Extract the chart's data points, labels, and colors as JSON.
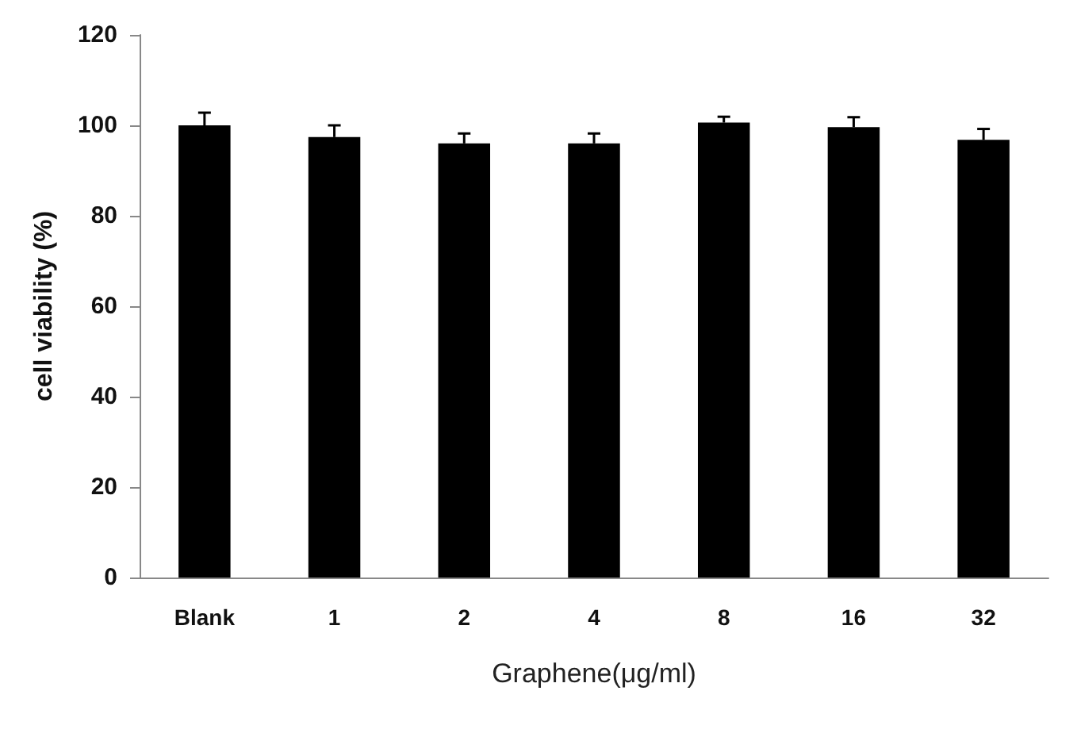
{
  "chart_data": {
    "type": "bar",
    "xlabel": "Graphene(μg/ml)",
    "ylabel": "cell viability (%)",
    "categories": [
      "Blank",
      "1",
      "2",
      "4",
      "8",
      "16",
      "32"
    ],
    "values": [
      100,
      97.4,
      96,
      96,
      100.6,
      99.6,
      96.8
    ],
    "errors": [
      2.8,
      2.6,
      2.2,
      2.2,
      1.3,
      2.2,
      2.4
    ],
    "color": "#000000",
    "ylim": [
      0,
      120
    ],
    "yticks": [
      0,
      20,
      40,
      60,
      80,
      100,
      120
    ],
    "grid": false
  }
}
